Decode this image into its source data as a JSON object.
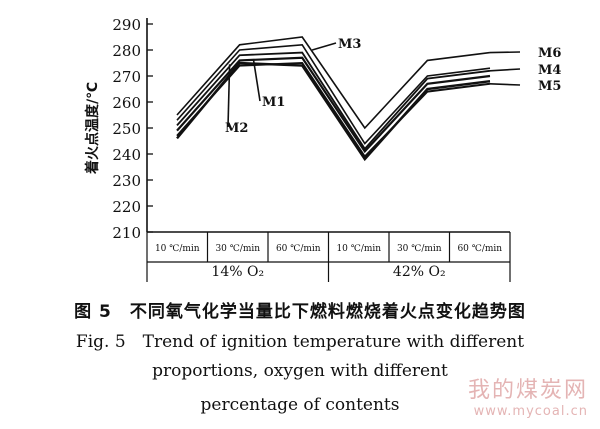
{
  "chart_data": {
    "type": "line",
    "ylabel": "着火点温度/℃",
    "ylim": [
      210,
      290
    ],
    "yticks": [
      210,
      220,
      230,
      240,
      250,
      260,
      270,
      280,
      290
    ],
    "categories": [
      "10 ℃/min",
      "30 ℃/min",
      "60 ℃/min",
      "10 ℃/min",
      "30 ℃/min",
      "60 ℃/min"
    ],
    "groups": [
      "14% O₂",
      "42% O₂"
    ],
    "series": [
      {
        "name": "M6",
        "values": [
          255,
          282,
          285,
          250,
          276,
          279
        ]
      },
      {
        "name": "M3",
        "values": [
          253,
          280,
          282,
          244,
          270,
          273
        ]
      },
      {
        "name": "M4",
        "values": [
          251,
          278,
          279,
          242,
          269,
          272
        ]
      },
      {
        "name": "M1",
        "values": [
          249,
          276,
          277,
          241,
          267,
          270
        ]
      },
      {
        "name": "M5",
        "values": [
          247,
          274,
          275,
          239,
          264,
          267
        ]
      },
      {
        "name": "M2",
        "values": [
          246,
          275,
          274,
          238,
          265,
          268
        ]
      }
    ],
    "grid": false
  },
  "caption": {
    "cn": "图 5　不同氧气化学当量比下燃料燃烧着火点变化趋势图",
    "en_line1": "Fig. 5　Trend of ignition temperature with different",
    "en_line2": "proportions, oxygen with different",
    "en_line3": "percentage of contents"
  },
  "watermark": {
    "text": "我的煤炭网",
    "url": "www.mycoal.cn"
  }
}
